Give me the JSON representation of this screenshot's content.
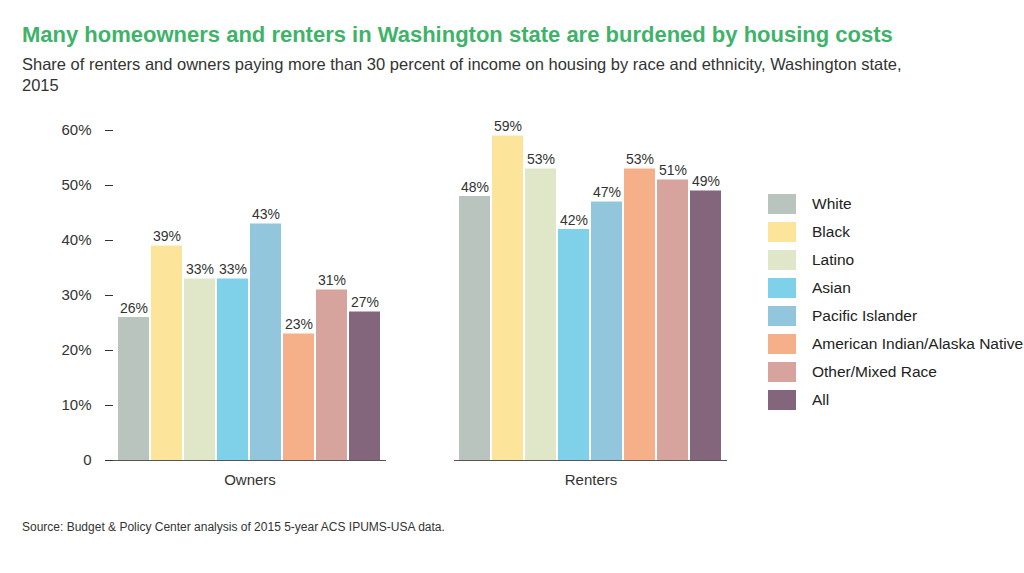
{
  "chart_data": {
    "type": "bar",
    "title": "Many homeowners and renters in Washington state are burdened by housing costs",
    "subtitle": "Share of renters and owners paying more than 30 percent of income on housing by race and ethnicity, Washington state, 2015",
    "caption": "Source:  Budget & Policy Center analysis of 2015 5-year ACS IPUMS-USA data.",
    "categories": [
      "Owners",
      "Renters"
    ],
    "series": [
      {
        "name": "White",
        "color": "#b9c4be",
        "values": [
          26,
          48
        ],
        "value_labels": [
          "26%",
          "48%"
        ]
      },
      {
        "name": "Black",
        "color": "#fde49b",
        "values": [
          39,
          59
        ],
        "value_labels": [
          "39%",
          "59%"
        ]
      },
      {
        "name": "Latino",
        "color": "#dfe7c8",
        "values": [
          33,
          53
        ],
        "value_labels": [
          "33%",
          "53%"
        ]
      },
      {
        "name": "Asian",
        "color": "#7fd0e9",
        "values": [
          33,
          42
        ],
        "value_labels": [
          "33%",
          "42%"
        ]
      },
      {
        "name": "Pacific Islander",
        "color": "#92c6dc",
        "values": [
          43,
          47
        ],
        "value_labels": [
          "43%",
          "47%"
        ]
      },
      {
        "name": "American Indian/Alaska Native",
        "color": "#f5b08a",
        "values": [
          23,
          53
        ],
        "value_labels": [
          "23%",
          "53%"
        ]
      },
      {
        "name": "Other/Mixed Race",
        "color": "#d6a49c",
        "values": [
          31,
          51
        ],
        "value_labels": [
          "31%",
          "51%"
        ]
      },
      {
        "name": "All",
        "color": "#84667c",
        "values": [
          27,
          49
        ],
        "value_labels": [
          "27%",
          "49%"
        ]
      }
    ],
    "ylim": [
      0,
      60
    ],
    "yticks": [
      {
        "value": 0,
        "label": "0"
      },
      {
        "value": 10,
        "label": "10%"
      },
      {
        "value": 20,
        "label": "20%"
      },
      {
        "value": 30,
        "label": "30%"
      },
      {
        "value": 40,
        "label": "40%"
      },
      {
        "value": 50,
        "label": "50%"
      },
      {
        "value": 60,
        "label": "60%"
      }
    ],
    "grid": false,
    "legend": "right",
    "data_labels": true
  }
}
